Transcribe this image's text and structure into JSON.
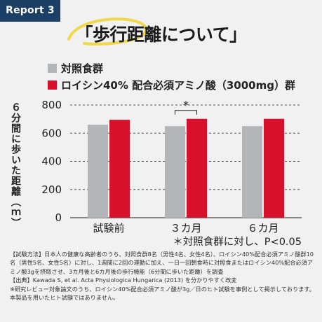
{
  "badge": "Report 3",
  "title": "「歩行距離について」",
  "chart_data": {
    "type": "bar",
    "categories": [
      "試験前",
      "３カ月",
      "６カ月"
    ],
    "series": [
      {
        "name": "対照食群",
        "color": "#b3b6b9",
        "values": [
          660,
          650,
          650
        ]
      },
      {
        "name": "ロイシン40% 配合必須アミノ酸（3000mg）群",
        "color": "#d7102b",
        "values": [
          695,
          702,
          702
        ]
      }
    ],
    "ylabel": "６分間に歩いた距離（ｍ）",
    "yticks": [
      0,
      200,
      400,
      600,
      800
    ],
    "ylim": [
      0,
      800
    ],
    "grid": "dashed",
    "significance": {
      "category": "３カ月",
      "mark": "*"
    },
    "footnote": "＊対照食群に対し、P<0.05"
  },
  "notes": [
    "【試験方法】日本人の健康な高齢者のうち、対照食群8名（男性4名、女性4名）、ロイシン40%配合必須アミノ酸群10名（男性5名、女性5名）に対し、1週間に2回の運動に加え、一日一回朝食時に対照食またはロイシン40%配合必須アミノ酸3gを摂取させ、3カ月後と6カ月後の歩行機能（6分間に歩いた距離）を調査",
    "【出典】Kawada S, et al. Acta Physiologica Hungarica (2013) を分かりやすく改変",
    "※研究レビュー対象論文のうち、ロイシン40%配合必須アミノ酸が3g／日のヒト試験を事例として掲示しております。本製品を用いたヒト試験ではありません。"
  ]
}
